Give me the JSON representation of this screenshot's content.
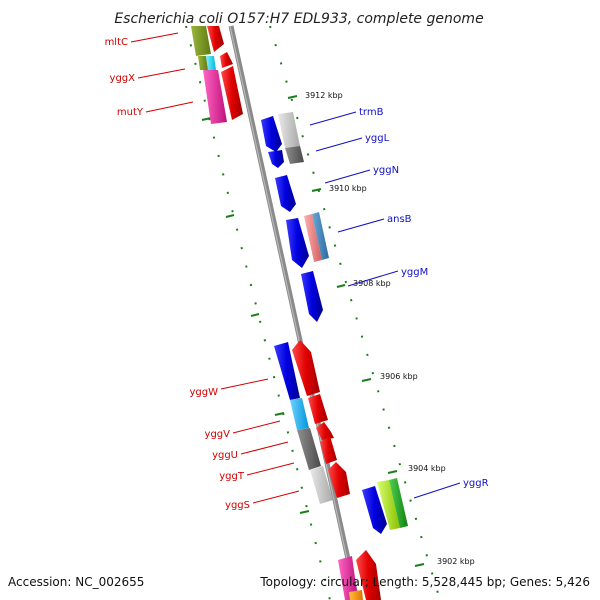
{
  "title": "Escherichia coli O157:H7 EDL933, complete genome",
  "footer": {
    "accession": "Accession: NC_002655",
    "topology": "Topology: circular; Length: 5,528,445 bp; Genes: 5,426"
  },
  "colors": {
    "backbone": "#808080",
    "tick_green": "#1a7f1a",
    "label_red": "#d00000",
    "label_blue": "#1010c0"
  },
  "scale_ticks": [
    {
      "label": "3912 kbp"
    },
    {
      "label": "3910 kbp"
    },
    {
      "label": "3908 kbp"
    },
    {
      "label": "3906 kbp"
    },
    {
      "label": "3904 kbp"
    },
    {
      "label": "3902 kbp"
    }
  ],
  "gene_labels": {
    "left": [
      {
        "name": "mltC"
      },
      {
        "name": "yggX"
      },
      {
        "name": "mutY"
      },
      {
        "name": "yggW"
      },
      {
        "name": "yggV"
      },
      {
        "name": "yggU"
      },
      {
        "name": "yggT"
      },
      {
        "name": "yggS"
      }
    ],
    "right": [
      {
        "name": "trmB"
      },
      {
        "name": "yggL"
      },
      {
        "name": "yggN"
      },
      {
        "name": "ansB"
      },
      {
        "name": "yggM"
      },
      {
        "name": "yggR"
      }
    ]
  }
}
